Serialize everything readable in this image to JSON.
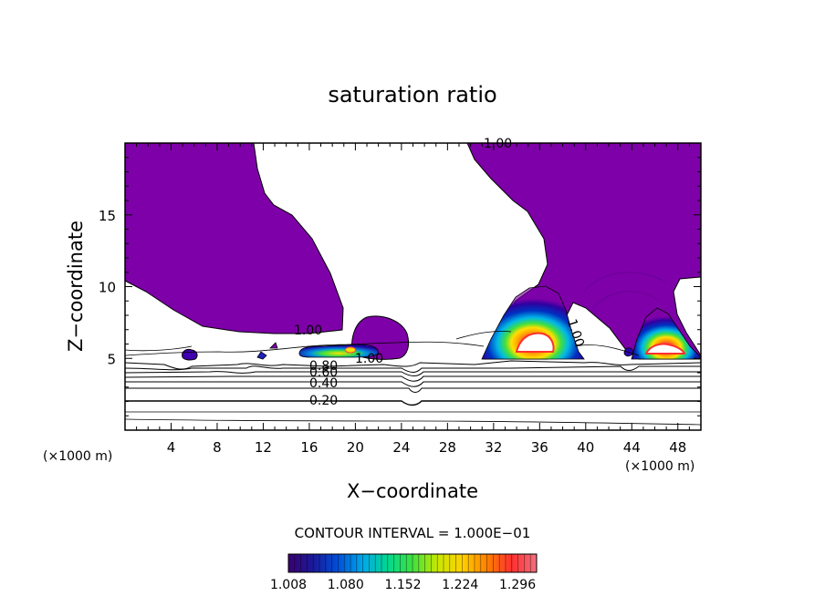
{
  "chart_data": {
    "type": "contour",
    "title": "saturation ratio",
    "xlabel": "X−coordinate",
    "ylabel": "Z−coordinate",
    "x_unit_left": "(×1000 m)",
    "x_unit_right": "(×1000 m)",
    "x_ticks": [
      4,
      8,
      12,
      16,
      20,
      24,
      28,
      32,
      36,
      40,
      44,
      48
    ],
    "y_ticks": [
      5,
      10,
      15
    ],
    "xlim": [
      0,
      50
    ],
    "ylim": [
      0,
      20
    ],
    "contour_labels": [
      {
        "text": "1.00",
        "x": 32.5,
        "z": 19.7
      },
      {
        "text": "1.00",
        "x": 16.2,
        "z": 7.0
      },
      {
        "text": "1.00",
        "x": 21.5,
        "z": 5.0
      },
      {
        "text": "1.00",
        "x": 38.8,
        "z": 7.2
      },
      {
        "text": "0.80",
        "x": 17.9,
        "z": 4.4
      },
      {
        "text": "0.60",
        "x": 17.9,
        "z": 3.8
      },
      {
        "text": "0.40",
        "x": 17.9,
        "z": 3.1
      },
      {
        "text": "0.20",
        "x": 17.9,
        "z": 2.1
      }
    ],
    "contour_interval_text": "CONTOUR INTERVAL = 1.000E−01",
    "colorbar": {
      "tick_labels": [
        "1.008",
        "1.080",
        "1.152",
        "1.224",
        "1.296"
      ],
      "min": 1.008,
      "max": 1.32,
      "colors": [
        "#3a006f",
        "#1a1a9a",
        "#0050d8",
        "#00a8e8",
        "#00d890",
        "#40e040",
        "#c8e800",
        "#ffd000",
        "#ff8000",
        "#ff3030",
        "#f07080"
      ]
    },
    "fill_color": "#7e00a8",
    "grid": false
  }
}
